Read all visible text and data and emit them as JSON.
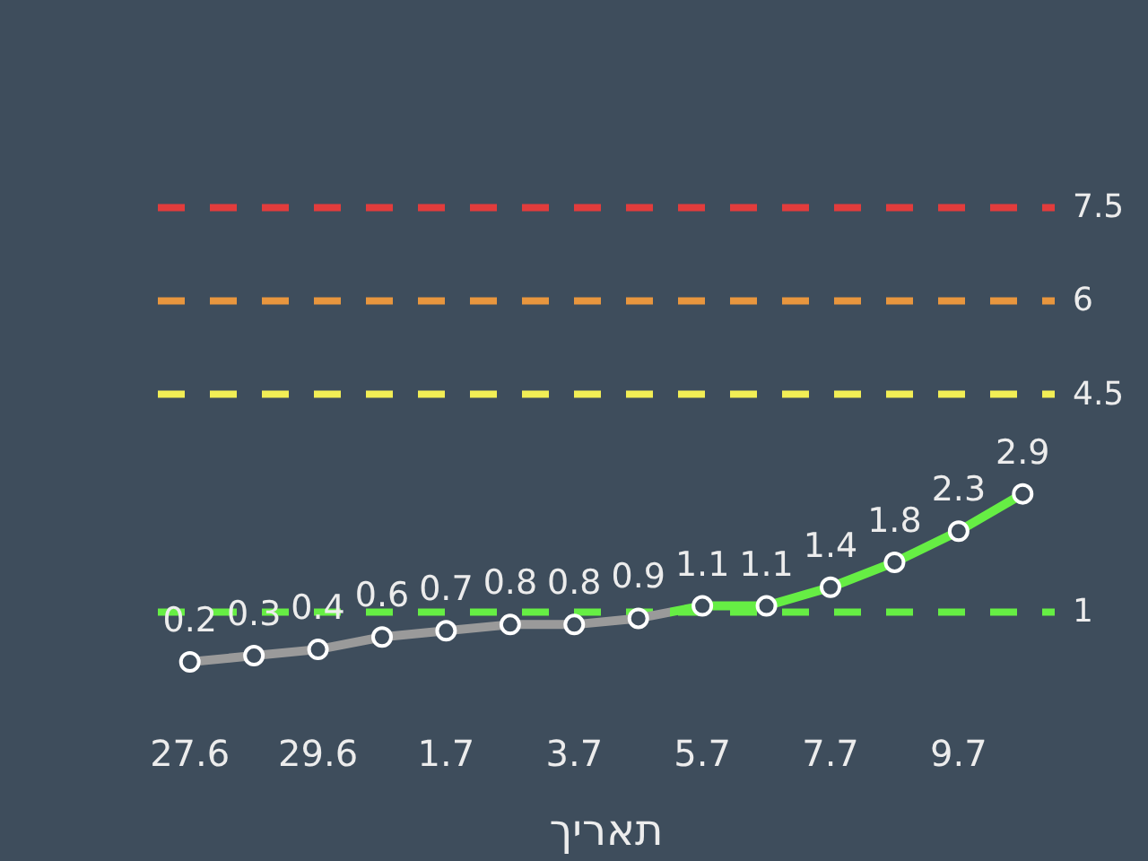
{
  "chart_data": {
    "type": "line",
    "categories": [
      "27.6",
      null,
      "29.6",
      null,
      "1.7",
      null,
      "3.7",
      null,
      "5.7",
      null,
      "7.7",
      null,
      "9.7",
      null
    ],
    "values": [
      0.2,
      0.3,
      0.4,
      0.6,
      0.7,
      0.8,
      0.8,
      0.9,
      1.1,
      1.1,
      1.4,
      1.8,
      2.3,
      2.9
    ],
    "colors": [
      "#9a9a9a",
      "#9a9a9a",
      "#9a9a9a",
      "#9a9a9a",
      "#9a9a9a",
      "#9a9a9a",
      "#9a9a9a",
      "#9a9a9a",
      "#66ee44",
      "#66ee44",
      "#66ee44",
      "#66ee44",
      "#66ee44",
      "#66ee44"
    ],
    "xlabel": "תאריך",
    "tick_labels": "x",
    "data_labels": true,
    "marker": "circle",
    "line_style": "solid",
    "ref_lines": [
      {
        "axis": "y",
        "value": 7.5,
        "label": "7.5",
        "color": "#e23c3c",
        "line_style": "dashed"
      },
      {
        "axis": "y",
        "value": 6,
        "label": "6",
        "color": "#e8963e",
        "line_style": "dashed"
      },
      {
        "axis": "y",
        "value": 4.5,
        "label": "4.5",
        "color": "#f2ee55",
        "line_style": "dashed"
      },
      {
        "axis": "y",
        "value": 1,
        "label": "1",
        "color": "#66ee44",
        "line_style": "dashed"
      }
    ]
  }
}
